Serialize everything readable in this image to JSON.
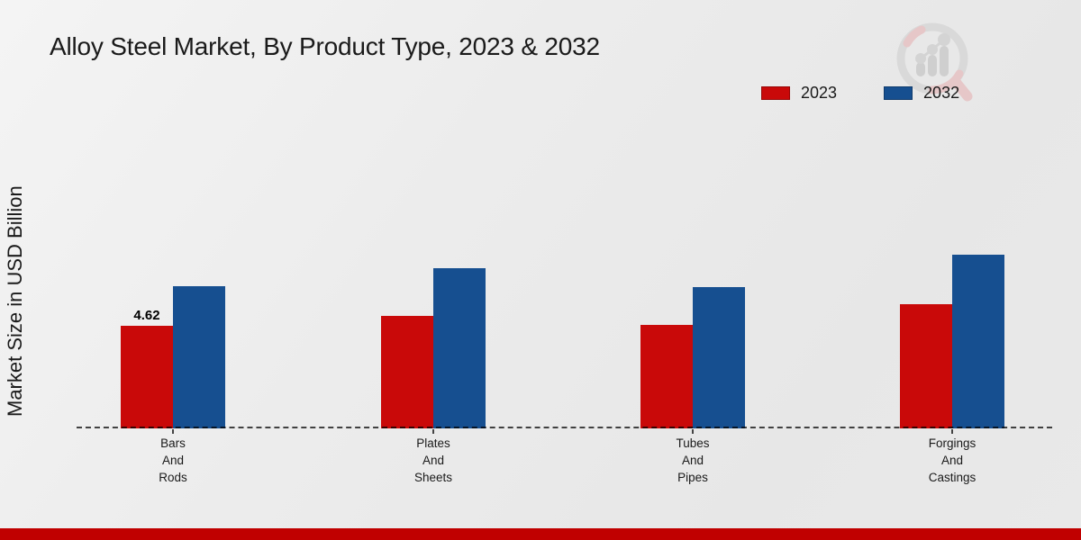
{
  "title": "Alloy Steel Market, By Product Type, 2023 & 2032",
  "y_axis_label": "Market Size in USD Billion",
  "legend": {
    "items": [
      {
        "label": "2023",
        "color": "#c90909"
      },
      {
        "label": "2032",
        "color": "#164f90"
      }
    ]
  },
  "colors": {
    "series_2023": "#c90909",
    "series_2032": "#164f90",
    "footer_band": "#c00000",
    "baseline": "#000000"
  },
  "footer": {
    "band_color": "#c00000"
  },
  "logo": {
    "name": "market-research-magnifier-logo"
  },
  "chart_data": {
    "type": "bar",
    "title": "Alloy Steel Market, By Product Type, 2023 & 2032",
    "xlabel": "",
    "ylabel": "Market Size in USD Billion",
    "categories": [
      "Bars\nAnd\nRods",
      "Plates\nAnd\nSheets",
      "Tubes\nAnd\nPipes",
      "Forgings\nAnd\nCastings"
    ],
    "series": [
      {
        "name": "2023",
        "color": "#c90909",
        "values": [
          4.62,
          5.06,
          4.67,
          5.59
        ]
      },
      {
        "name": "2032",
        "color": "#164f90",
        "values": [
          6.4,
          7.21,
          6.38,
          7.81
        ]
      }
    ],
    "value_labels": [
      {
        "series_index": 0,
        "category_index": 0,
        "text": "4.62"
      }
    ],
    "ylim": [
      0,
      8.5
    ],
    "grid": false,
    "legend_position": "top-right",
    "baseline_style": "dashed"
  }
}
